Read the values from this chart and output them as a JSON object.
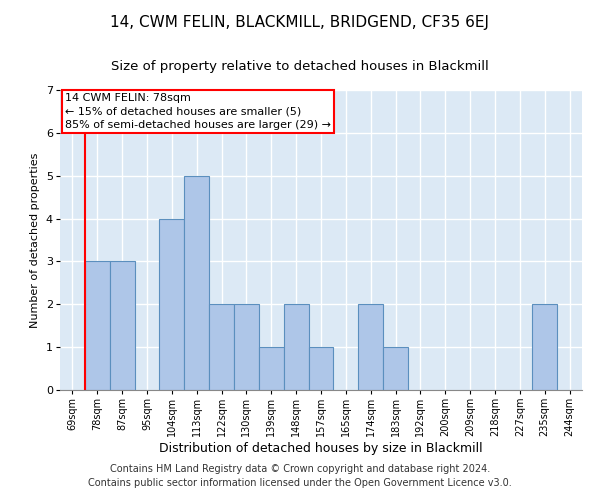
{
  "title": "14, CWM FELIN, BLACKMILL, BRIDGEND, CF35 6EJ",
  "subtitle": "Size of property relative to detached houses in Blackmill",
  "xlabel_bottom": "Distribution of detached houses by size in Blackmill",
  "ylabel": "Number of detached properties",
  "footer_line1": "Contains HM Land Registry data © Crown copyright and database right 2024.",
  "footer_line2": "Contains public sector information licensed under the Open Government Licence v3.0.",
  "categories": [
    "69sqm",
    "78sqm",
    "87sqm",
    "95sqm",
    "104sqm",
    "113sqm",
    "122sqm",
    "130sqm",
    "139sqm",
    "148sqm",
    "157sqm",
    "165sqm",
    "174sqm",
    "183sqm",
    "192sqm",
    "200sqm",
    "209sqm",
    "218sqm",
    "227sqm",
    "235sqm",
    "244sqm"
  ],
  "values": [
    0,
    3,
    3,
    0,
    4,
    5,
    2,
    2,
    1,
    2,
    1,
    0,
    2,
    1,
    0,
    0,
    0,
    0,
    0,
    2,
    0
  ],
  "bar_color": "#aec6e8",
  "bar_edge_color": "#5b8fbe",
  "ylim": [
    0,
    7
  ],
  "yticks": [
    0,
    1,
    2,
    3,
    4,
    5,
    6,
    7
  ],
  "vline_x_index": 1,
  "annotation_box_text": "14 CWM FELIN: 78sqm\n← 15% of detached houses are smaller (5)\n85% of semi-detached houses are larger (29) →",
  "plot_bg_color": "#dce9f5",
  "grid_color": "#ffffff",
  "title_fontsize": 11,
  "subtitle_fontsize": 9.5,
  "annotation_fontsize": 8,
  "footer_fontsize": 7,
  "tick_fontsize": 7,
  "ylabel_fontsize": 8,
  "xlabel_fontsize": 9
}
